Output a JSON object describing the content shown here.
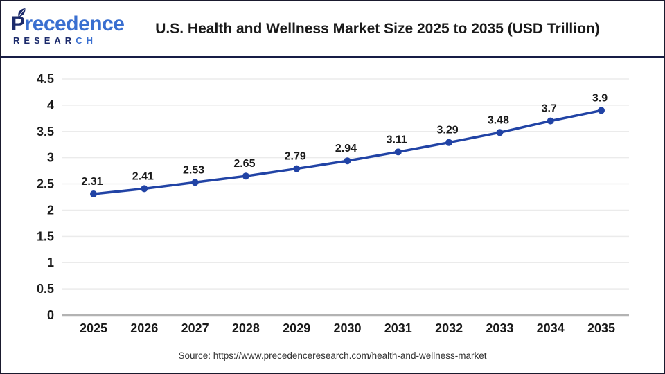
{
  "header": {
    "logo": {
      "brand_first_letter": "P",
      "brand_rest": "recedence",
      "research_navy_part": "RESEAR",
      "research_blue_part": "CH",
      "navy_color": "#1b2a6b",
      "blue_color": "#3a6fd0"
    },
    "title": "U.S. Health and Wellness Market Size 2025 to 2035 (USD Trillion)"
  },
  "chart_data": {
    "type": "line",
    "title": "U.S. Health and Wellness Market Size 2025 to 2035 (USD Trillion)",
    "categories": [
      "2025",
      "2026",
      "2027",
      "2028",
      "2029",
      "2030",
      "2031",
      "2032",
      "2033",
      "2034",
      "2035"
    ],
    "values": [
      2.31,
      2.41,
      2.53,
      2.65,
      2.79,
      2.94,
      3.11,
      3.29,
      3.48,
      3.7,
      3.9
    ],
    "labels": [
      "2.31",
      "2.41",
      "2.53",
      "2.65",
      "2.79",
      "2.94",
      "3.11",
      "3.29",
      "3.48",
      "3.7",
      "3.9"
    ],
    "unit": "USD Trillion",
    "xlabel": "",
    "ylabel": "",
    "ylim": [
      0,
      4.5
    ],
    "ytick_step": 0.5,
    "y_tick_labels": [
      "0",
      "0.5",
      "1",
      "1.5",
      "2",
      "2.5",
      "3",
      "3.5",
      "4",
      "4.5"
    ],
    "grid": true,
    "legend": "none",
    "line_color": "#2143a5",
    "marker_color": "#2143a5",
    "gridline_color": "#ebebeb",
    "axis_color": "#b3b3b3",
    "label_color": "#1a1a1a"
  },
  "footer": {
    "source": "Source: https://www.precedenceresearch.com/health-and-wellness-market"
  }
}
